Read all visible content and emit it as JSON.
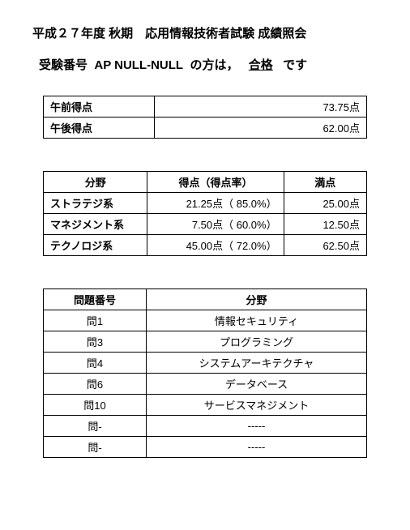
{
  "header": {
    "title": "平成２７年度 秋期　応用情報技術者試験 成績照会",
    "examinee_label": "受験番号",
    "exam_prefix": "AP",
    "exam_number": "NULL-NULL",
    "person_label": "の方は，",
    "result": "合格",
    "suffix": "です"
  },
  "score_table": {
    "rows": [
      {
        "label": "午前得点",
        "value": "73.75点"
      },
      {
        "label": "午後得点",
        "value": "62.00点"
      }
    ]
  },
  "field_table": {
    "headers": {
      "field": "分野",
      "score": "得点（得点率）",
      "max": "満点"
    },
    "rows": [
      {
        "field": "ストラテジ系",
        "score": "21.25点（ 85.0%）",
        "max": "25.00点"
      },
      {
        "field": "マネジメント系",
        "score": "7.50点（ 60.0%）",
        "max": "12.50点"
      },
      {
        "field": "テクノロジ系",
        "score": "45.00点（ 72.0%）",
        "max": "62.50点"
      }
    ]
  },
  "question_table": {
    "headers": {
      "qn": "問題番号",
      "field": "分野"
    },
    "rows": [
      {
        "qn": "問1",
        "field": "情報セキュリティ"
      },
      {
        "qn": "問3",
        "field": "プログラミング"
      },
      {
        "qn": "問4",
        "field": "システムアーキテクチャ"
      },
      {
        "qn": "問6",
        "field": "データベース"
      },
      {
        "qn": "問10",
        "field": "サービスマネジメント"
      },
      {
        "qn": "問-",
        "field": "-----"
      },
      {
        "qn": "問-",
        "field": "-----"
      }
    ]
  }
}
